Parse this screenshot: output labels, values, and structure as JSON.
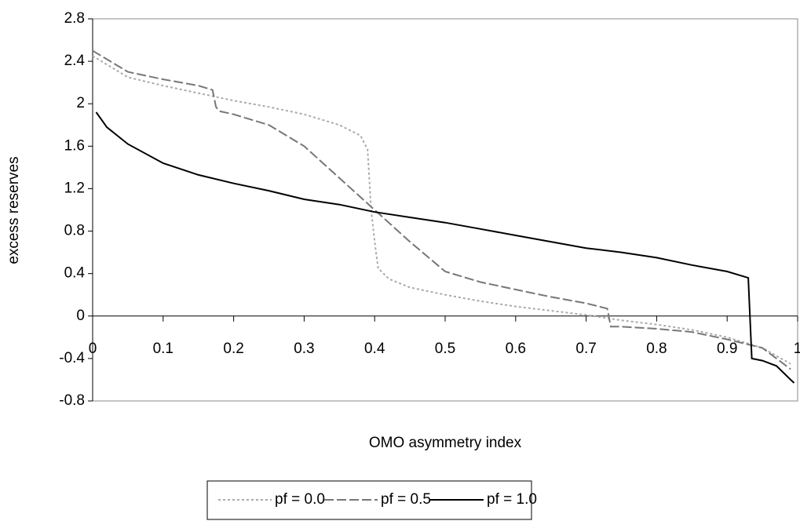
{
  "chart_data": {
    "type": "line",
    "x_label": "OMO asymmetry index",
    "y_label": "excess reserves",
    "xlim": [
      0,
      1
    ],
    "xticks": [
      0,
      0.1,
      0.2,
      0.3,
      0.4,
      0.5,
      0.6,
      0.7,
      0.8,
      0.9,
      1
    ],
    "ylim": [
      -0.8,
      2.8
    ],
    "yticks": [
      -0.8,
      -0.4,
      0,
      0.4,
      0.8,
      1.2,
      1.6,
      2,
      2.4,
      2.8
    ],
    "grid": false,
    "legend": "bottom",
    "series": [
      {
        "name": "pf = 0.0",
        "color": "#aaaaaa",
        "dash": "3,3",
        "x": [
          0,
          0.05,
          0.1,
          0.15,
          0.2,
          0.25,
          0.3,
          0.35,
          0.38,
          0.39,
          0.395,
          0.4,
          0.405,
          0.42,
          0.45,
          0.5,
          0.55,
          0.6,
          0.65,
          0.7,
          0.75,
          0.8,
          0.85,
          0.9,
          0.95,
          0.99
        ],
        "values": [
          2.45,
          2.25,
          2.17,
          2.1,
          2.03,
          1.97,
          1.9,
          1.8,
          1.7,
          1.57,
          1.0,
          0.7,
          0.45,
          0.35,
          0.27,
          0.2,
          0.14,
          0.09,
          0.05,
          0.01,
          -0.04,
          -0.08,
          -0.13,
          -0.2,
          -0.3,
          -0.45
        ]
      },
      {
        "name": "pf = 0.5",
        "color": "#777777",
        "dash": "12,4",
        "x": [
          0,
          0.05,
          0.1,
          0.15,
          0.17,
          0.175,
          0.18,
          0.2,
          0.25,
          0.3,
          0.35,
          0.4,
          0.45,
          0.5,
          0.55,
          0.6,
          0.65,
          0.7,
          0.73,
          0.735,
          0.75,
          0.8,
          0.85,
          0.9,
          0.95,
          0.99
        ],
        "values": [
          2.5,
          2.3,
          2.23,
          2.17,
          2.13,
          1.97,
          1.93,
          1.9,
          1.8,
          1.6,
          1.3,
          1.0,
          0.7,
          0.42,
          0.32,
          0.25,
          0.18,
          0.12,
          0.07,
          -0.1,
          -0.1,
          -0.12,
          -0.15,
          -0.22,
          -0.3,
          -0.5
        ]
      },
      {
        "name": "pf = 1.0",
        "color": "#000000",
        "dash": "none",
        "x": [
          0.005,
          0.02,
          0.05,
          0.1,
          0.15,
          0.2,
          0.25,
          0.3,
          0.35,
          0.4,
          0.45,
          0.5,
          0.55,
          0.6,
          0.65,
          0.7,
          0.75,
          0.8,
          0.85,
          0.9,
          0.93,
          0.935,
          0.95,
          0.97,
          0.99,
          0.995
        ],
        "values": [
          1.92,
          1.78,
          1.62,
          1.44,
          1.33,
          1.25,
          1.18,
          1.1,
          1.05,
          0.98,
          0.93,
          0.88,
          0.82,
          0.76,
          0.7,
          0.64,
          0.6,
          0.55,
          0.48,
          0.42,
          0.36,
          -0.4,
          -0.42,
          -0.47,
          -0.6,
          -0.63
        ]
      }
    ]
  }
}
